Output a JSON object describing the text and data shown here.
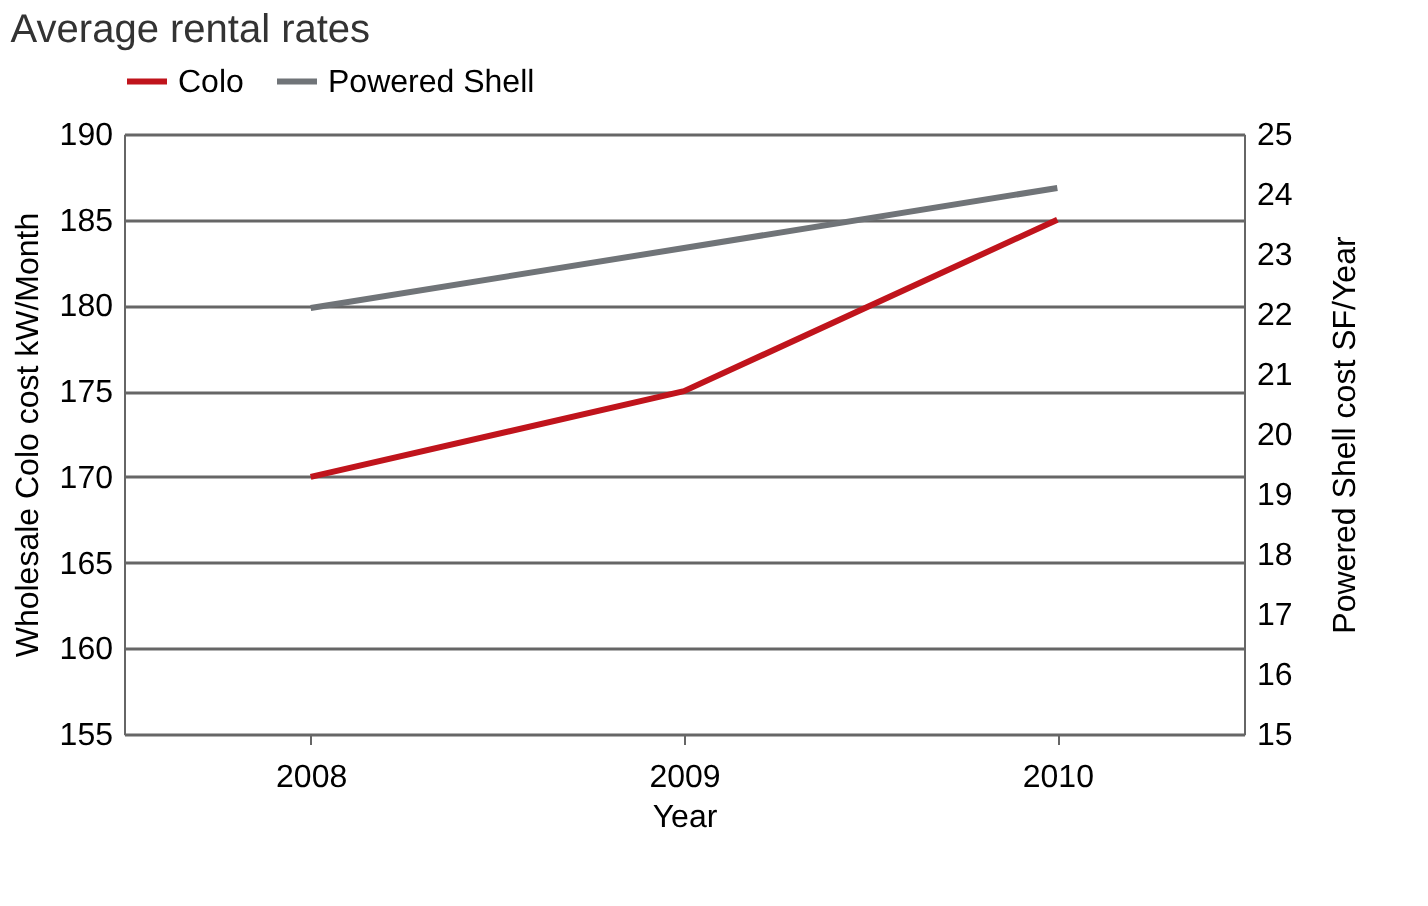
{
  "chart_data": {
    "type": "line",
    "title": "Average rental rates",
    "xlabel": "Year",
    "ylabel": "Wholesale  Colo cost kW/Month",
    "y2label": "Powered Shell cost SF/Year",
    "categories": [
      "2008",
      "2009",
      "2010"
    ],
    "series": [
      {
        "name": "Colo",
        "color": "#c0141c",
        "values": [
          170,
          175,
          185
        ]
      },
      {
        "name": "Powered Shell",
        "color": "#707478",
        "values": [
          22.1,
          23.1,
          24.1
        ],
        "axis": "y2"
      }
    ],
    "ylim": [
      155,
      190
    ],
    "yticks": [
      155,
      160,
      165,
      170,
      175,
      180,
      185,
      190
    ],
    "y2lim": [
      15,
      25
    ],
    "y2ticks": [
      15,
      16,
      17,
      18,
      19,
      20,
      21,
      22,
      23,
      24,
      25
    ],
    "grid": "y",
    "legend": "top",
    "marker": "none",
    "line_style": "solid"
  }
}
